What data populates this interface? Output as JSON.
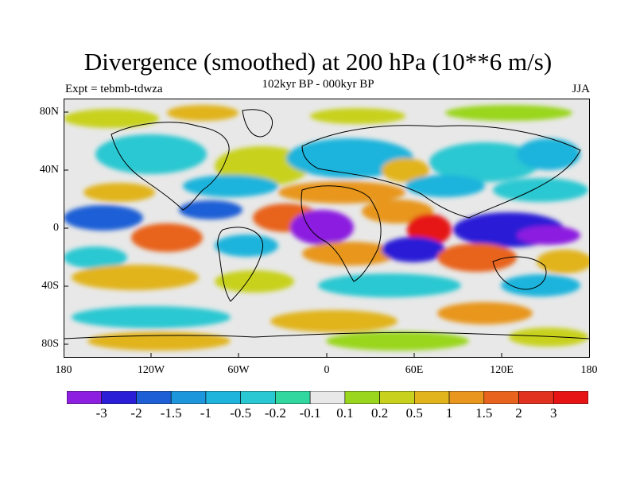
{
  "title": "Divergence (smoothed) at 200 hPa (10**6 m/s)",
  "subtitle": "102kyr BP - 000kyr BP",
  "experiment": "Expt = tebmb-tdwza",
  "season": "JJA",
  "y_axis_labels": [
    "80N",
    "40N",
    "0",
    "40S",
    "80S"
  ],
  "x_axis_labels": [
    "180",
    "120W",
    "60W",
    "0",
    "60E",
    "120E",
    "180"
  ],
  "colorbar": {
    "labels": [
      "-3",
      "-2",
      "-1.5",
      "-1",
      "-0.5",
      "-0.2",
      "-0.1",
      "0.1",
      "0.2",
      "0.5",
      "1",
      "1.5",
      "2",
      "3"
    ],
    "colors": [
      "#8c1fe0",
      "#2a1fd6",
      "#1e5fd6",
      "#1e96dc",
      "#1eb4dc",
      "#2ac8d2",
      "#32d7a0",
      "#e8e8e8",
      "#9ad61e",
      "#c8d21e",
      "#e1b41e",
      "#e8961e",
      "#e8641e",
      "#e0321e",
      "#e61414"
    ]
  },
  "colors": {
    "background_field": "#e8e8e8",
    "coastline": "#000000"
  }
}
